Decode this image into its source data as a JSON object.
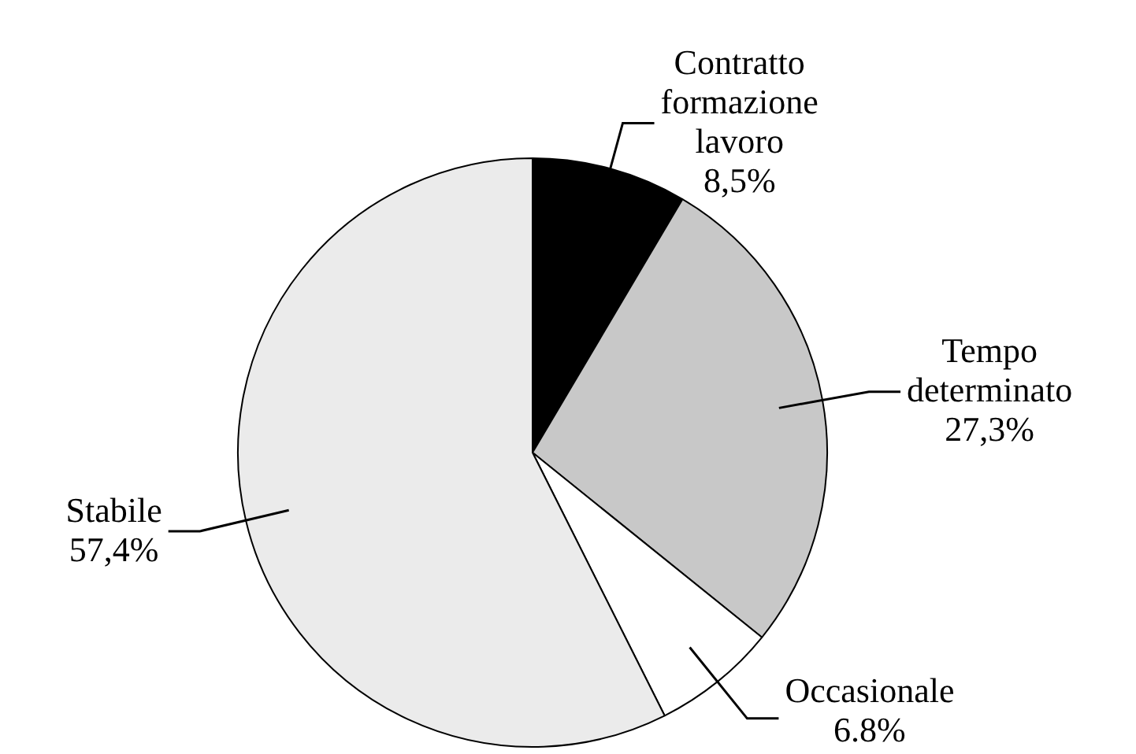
{
  "chart_data": {
    "type": "pie",
    "categories": [
      "Contratto formazione lavoro",
      "Tempo determinato",
      "Occasionale",
      "Stabile"
    ],
    "values": [
      8.5,
      27.3,
      6.8,
      57.4
    ],
    "colors": [
      "#000000",
      "#c8c8c8",
      "#ffffff",
      "#ebebeb"
    ],
    "value_labels": [
      "8,5%",
      "27,3%",
      "6.8%",
      "57,4%"
    ],
    "legend": false
  }
}
